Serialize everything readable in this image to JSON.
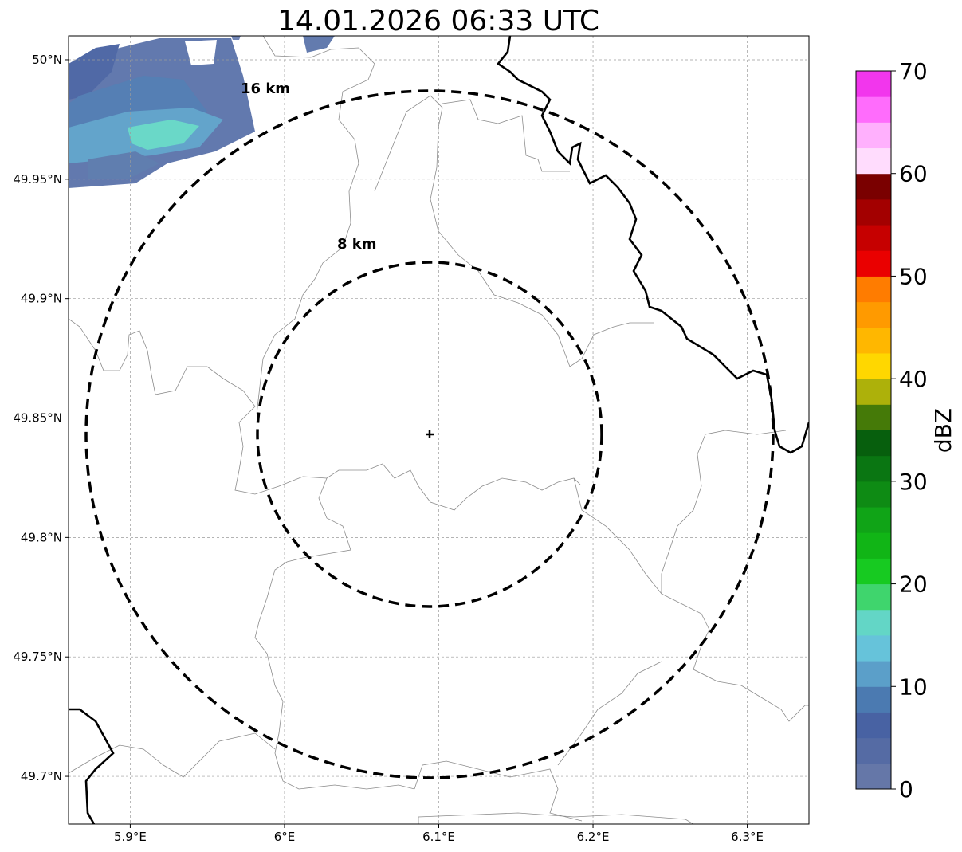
{
  "title": "14.01.2026 06:33 UTC",
  "map": {
    "lon_range": [
      5.86,
      6.34
    ],
    "lat_range": [
      49.68,
      50.01
    ],
    "lon_ticks": [
      {
        "value": 5.9,
        "label": "5.9°E"
      },
      {
        "value": 6.0,
        "label": "6°E"
      },
      {
        "value": 6.1,
        "label": "6.1°E"
      },
      {
        "value": 6.2,
        "label": "6.2°E"
      },
      {
        "value": 6.3,
        "label": "6.3°E"
      }
    ],
    "lat_ticks": [
      {
        "value": 50.0,
        "label": "50°N"
      },
      {
        "value": 49.95,
        "label": "49.95°N"
      },
      {
        "value": 49.9,
        "label": "49.9°N"
      },
      {
        "value": 49.85,
        "label": "49.85°N"
      },
      {
        "value": 49.8,
        "label": "49.8°N"
      },
      {
        "value": 49.75,
        "label": "49.75°N"
      },
      {
        "value": 49.7,
        "label": "49.7°N"
      }
    ],
    "radar_center": {
      "lon": 6.0967,
      "lat": 49.8433
    },
    "range_rings": [
      {
        "label": "8 km"
      },
      {
        "label": "16 km"
      }
    ],
    "grid": true
  },
  "colorbar": {
    "label": "dBZ",
    "min": 0,
    "max": 70,
    "step": 2.5,
    "ticks": [
      "0",
      "10",
      "20",
      "30",
      "40",
      "50",
      "60",
      "70"
    ],
    "colors": [
      "#6577a8",
      "#556ba4",
      "#4862a3",
      "#4b7ab1",
      "#5b9fc9",
      "#66c3da",
      "#63d6c6",
      "#3fd56d",
      "#17ca21",
      "#11b516",
      "#10a417",
      "#0e8b14",
      "#0a7612",
      "#075f0d",
      "#457a08",
      "#adb10a",
      "#ffd700",
      "#ffb700",
      "#ff9a00",
      "#ff7c00",
      "#ea0000",
      "#c60000",
      "#a30000",
      "#7a0000",
      "#ffdcfd",
      "#ffb0fd",
      "#ff6cfc",
      "#f236ed"
    ]
  }
}
